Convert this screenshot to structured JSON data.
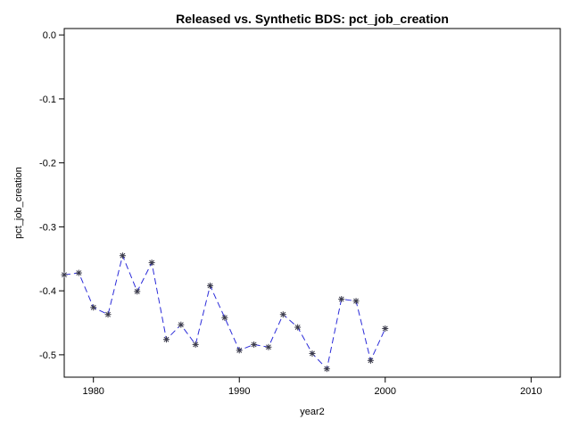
{
  "chart_data": {
    "type": "line",
    "title": "Released vs. Synthetic BDS: pct_job_creation",
    "xlabel": "year2",
    "ylabel": "pct_job_creation",
    "xlim": [
      1978,
      2012
    ],
    "ylim": [
      -0.535,
      0.01
    ],
    "x_ticks": [
      1980,
      1990,
      2000,
      2010
    ],
    "x_tick_labels": [
      "1980",
      "1990",
      "2000",
      "2010"
    ],
    "y_ticks": [
      0.0,
      -0.1,
      -0.2,
      -0.3,
      -0.4,
      -0.5
    ],
    "y_tick_labels": [
      "0.0",
      "-0.1",
      "-0.2",
      "-0.3",
      "-0.4",
      "-0.5"
    ],
    "grid": false,
    "line_style": "dashed",
    "marker": "asterisk",
    "line_color": "#2b2bd9",
    "marker_color": "#3a3a4a",
    "series": [
      {
        "x": [
          1978,
          1979,
          1980,
          1981,
          1982,
          1983,
          1984,
          1985,
          1986,
          1987,
          1988,
          1989,
          1990,
          1991,
          1992,
          1993,
          1994,
          1995,
          1996,
          1997,
          1998,
          1999,
          2000
        ],
        "values": [
          -0.375,
          -0.372,
          -0.426,
          -0.437,
          -0.345,
          -0.401,
          -0.356,
          -0.476,
          -0.453,
          -0.484,
          -0.392,
          -0.442,
          -0.493,
          -0.484,
          -0.488,
          -0.437,
          -0.457,
          -0.498,
          -0.522,
          -0.413,
          -0.416,
          -0.509,
          -0.459
        ]
      }
    ]
  }
}
